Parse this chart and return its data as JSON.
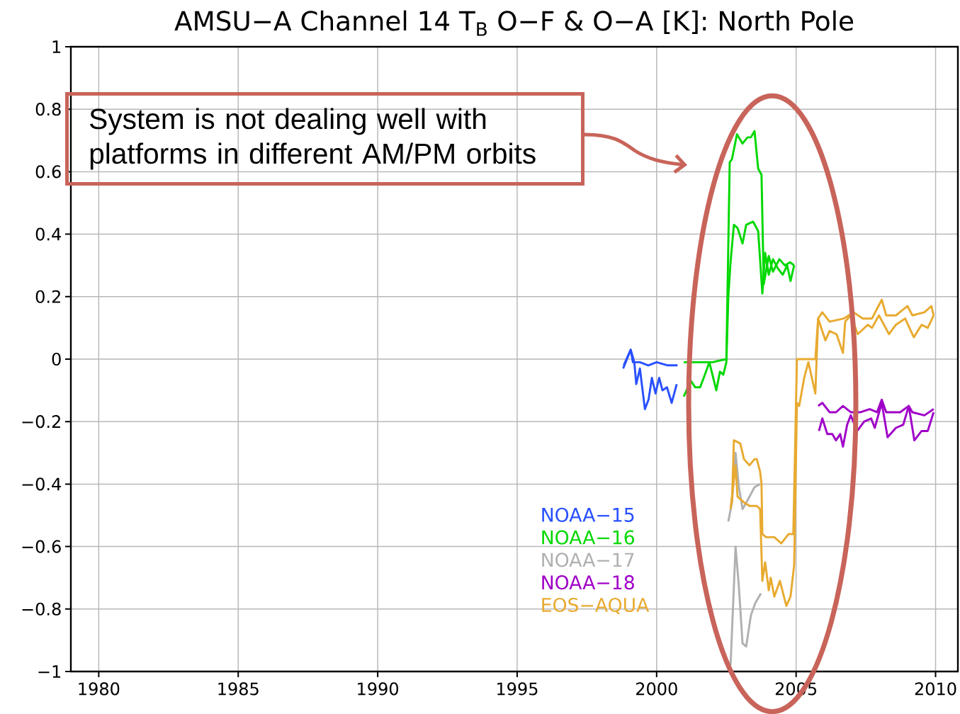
{
  "chart_data": {
    "type": "line",
    "title": "AMSU−A Channel 14 T$_{B}$ O−F & O−A [K]: North Pole",
    "xlim": [
      1979,
      2010.8
    ],
    "ylim": [
      -1,
      1
    ],
    "xticks": [
      1980,
      1985,
      1990,
      1995,
      2000,
      2005,
      2010
    ],
    "yticks": [
      {
        "value": -1,
        "label": "−1"
      },
      {
        "value": -0.8,
        "label": "−0.8"
      },
      {
        "value": -0.6,
        "label": "−0.6"
      },
      {
        "value": -0.4,
        "label": "−0.4"
      },
      {
        "value": -0.2,
        "label": "−0.2"
      },
      0,
      0.2,
      0.4,
      0.6,
      0.8,
      1
    ],
    "grid": true,
    "legend": "bottom",
    "annotations": [
      "System is not dealing well with platforms in different AM/PM orbits"
    ],
    "series": [
      {
        "name": "NOAA−15",
        "color": "#2850ff",
        "x": [
          1998.82,
          1999.07,
          1999.2,
          1999.27,
          1999.4,
          1999.58,
          1999.71,
          1999.83,
          1999.96,
          2000.09,
          2000.21,
          2000.37,
          2000.54,
          2000.72
        ],
        "values": [
          -0.02,
          0.03,
          -0.01,
          -0.08,
          -0.03,
          -0.16,
          -0.13,
          -0.06,
          -0.11,
          -0.06,
          -0.1,
          -0.09,
          -0.14,
          -0.08
        ]
      },
      {
        "color": "#2850ff",
        "x": [
          1998.8,
          1999.07,
          1999.15,
          1999.4,
          1999.7,
          2000.0,
          2000.4,
          2000.75
        ],
        "values": [
          -0.03,
          0.03,
          -0.01,
          -0.01,
          -0.02,
          -0.01,
          -0.02,
          -0.02
        ]
      },
      {
        "name": "NOAA−16",
        "color": "#00d800",
        "x": [
          2000.97,
          2001.23,
          2001.38,
          2001.56,
          2001.73,
          2001.89,
          2002.14,
          2002.27,
          2002.39,
          2002.5,
          2002.57,
          2002.65,
          2002.77,
          2002.9,
          2003.08,
          2003.21,
          2003.46,
          2003.64,
          2003.79,
          2003.89,
          2004.02,
          2004.17,
          2004.35,
          2004.52,
          2004.68,
          2004.8,
          2004.93
        ],
        "values": [
          -0.12,
          -0.07,
          -0.09,
          -0.09,
          -0.05,
          -0.01,
          -0.1,
          -0.04,
          -0.05,
          -0.01,
          0.2,
          0.31,
          0.43,
          0.42,
          0.37,
          0.43,
          0.44,
          0.41,
          0.21,
          0.34,
          0.27,
          0.32,
          0.29,
          0.27,
          0.3,
          0.25,
          0.3
        ]
      },
      {
        "color": "#00d800",
        "x": [
          2000.97,
          2001.3,
          2002.0,
          2002.5,
          2002.62,
          2002.7,
          2002.88,
          2003.08,
          2003.26,
          2003.38,
          2003.51,
          2003.64,
          2003.76,
          2003.84,
          2004.02,
          2004.17,
          2004.4,
          2004.6,
          2004.78,
          2004.93
        ],
        "values": [
          -0.01,
          -0.01,
          -0.01,
          0.0,
          0.63,
          0.64,
          0.72,
          0.69,
          0.71,
          0.71,
          0.73,
          0.61,
          0.59,
          0.24,
          0.33,
          0.28,
          0.32,
          0.3,
          0.31,
          0.3
        ]
      },
      {
        "name": "NOAA−17",
        "color": "#b0b0b0",
        "x": [
          2002.65,
          2002.83,
          2002.95,
          2003.08,
          2003.21,
          2003.38,
          2003.54,
          2003.74
        ],
        "values": [
          -0.98,
          -0.6,
          -0.73,
          -0.91,
          -0.92,
          -0.82,
          -0.78,
          -0.75
        ]
      },
      {
        "color": "#b0b0b0",
        "x": [
          2002.57,
          2002.7,
          2002.83,
          2002.95,
          2003.08,
          2003.21,
          2003.33,
          2003.51,
          2003.71
        ],
        "values": [
          -0.52,
          -0.46,
          -0.3,
          -0.41,
          -0.48,
          -0.46,
          -0.44,
          -0.41,
          -0.4
        ]
      },
      {
        "name": "NOAA−18",
        "color": "#a000c8",
        "x": [
          2005.82,
          2005.94,
          2006.12,
          2006.3,
          2006.43,
          2006.58,
          2006.68,
          2006.83,
          2006.96,
          2007.19,
          2007.44,
          2007.69,
          2007.82,
          2008.07,
          2008.28,
          2008.58,
          2008.84,
          2009.04,
          2009.24,
          2009.5,
          2009.72,
          2009.93
        ],
        "values": [
          -0.23,
          -0.19,
          -0.24,
          -0.24,
          -0.26,
          -0.24,
          -0.28,
          -0.21,
          -0.18,
          -0.23,
          -0.2,
          -0.19,
          -0.22,
          -0.14,
          -0.25,
          -0.22,
          -0.21,
          -0.15,
          -0.26,
          -0.23,
          -0.23,
          -0.17
        ]
      },
      {
        "color": "#a000c8",
        "x": [
          2005.79,
          2005.94,
          2006.2,
          2006.43,
          2006.68,
          2006.96,
          2007.31,
          2007.64,
          2007.9,
          2008.07,
          2008.23,
          2008.73,
          2009.04,
          2009.17,
          2009.6,
          2009.93
        ],
        "values": [
          -0.15,
          -0.14,
          -0.17,
          -0.17,
          -0.15,
          -0.17,
          -0.17,
          -0.16,
          -0.17,
          -0.13,
          -0.17,
          -0.17,
          -0.15,
          -0.17,
          -0.18,
          -0.16
        ]
      },
      {
        "name": "EOS−AQUA",
        "color": "#e8aa30",
        "x": [
          2002.65,
          2002.83,
          2002.9,
          2003.15,
          2003.33,
          2003.59,
          2003.71,
          2003.79,
          2003.89,
          2004.02,
          2004.09,
          2004.22,
          2004.42,
          2004.65,
          2004.8,
          2004.93,
          2005.03,
          2005.11,
          2005.29,
          2005.44,
          2005.69,
          2005.79,
          2006.05,
          2006.2,
          2006.45,
          2006.68,
          2006.76,
          2006.96,
          2007.21,
          2007.57,
          2007.72,
          2007.97,
          2008.33,
          2008.58,
          2008.91,
          2009.22,
          2009.5,
          2009.72,
          2009.93
        ],
        "values": [
          -0.48,
          -0.34,
          -0.44,
          -0.46,
          -0.47,
          -0.47,
          -0.48,
          -0.71,
          -0.65,
          -0.74,
          -0.7,
          -0.76,
          -0.71,
          -0.79,
          -0.76,
          -0.66,
          -0.14,
          -0.15,
          -0.06,
          -0.01,
          -0.11,
          0.13,
          0.06,
          0.09,
          0.08,
          0.02,
          0.12,
          0.14,
          0.08,
          0.11,
          0.1,
          0.14,
          0.08,
          0.11,
          0.13,
          0.07,
          0.11,
          0.1,
          0.14
        ]
      },
      {
        "color": "#e8aa30",
        "x": [
          2002.7,
          2002.77,
          2003.0,
          2003.13,
          2003.33,
          2003.51,
          2003.59,
          2003.71,
          2003.76,
          2003.79,
          2003.92,
          2004.22,
          2004.47,
          2004.73,
          2004.9,
          2005.03,
          2005.18,
          2005.44,
          2005.69,
          2005.79,
          2005.94,
          2006.2,
          2006.71,
          2007.06,
          2007.39,
          2007.72,
          2008.07,
          2008.23,
          2008.58,
          2008.99,
          2009.17,
          2009.6,
          2009.85,
          2009.93
        ],
        "values": [
          -0.46,
          -0.26,
          -0.27,
          -0.32,
          -0.34,
          -0.32,
          -0.32,
          -0.36,
          -0.4,
          -0.56,
          -0.57,
          -0.57,
          -0.59,
          -0.56,
          -0.56,
          0.0,
          0.0,
          0.0,
          0.0,
          0.13,
          0.15,
          0.12,
          0.13,
          0.15,
          0.13,
          0.13,
          0.19,
          0.14,
          0.14,
          0.17,
          0.14,
          0.15,
          0.17,
          0.14
        ]
      }
    ]
  }
}
